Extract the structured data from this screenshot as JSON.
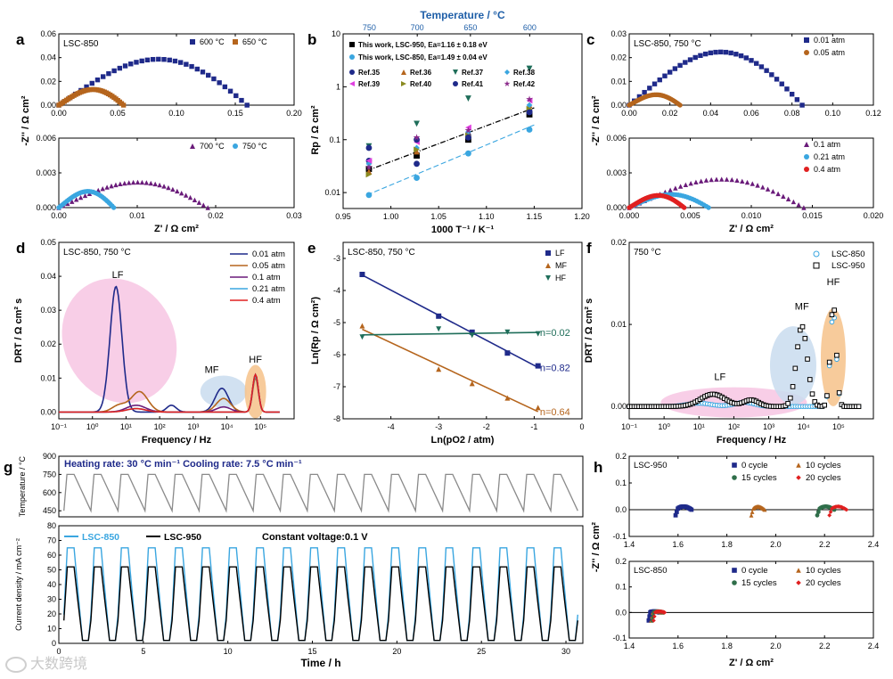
{
  "figure": {
    "watermark": "大数跨境",
    "colors": {
      "navy": "#1f2a8a",
      "brown": "#b5651d",
      "purple": "#6a1b7a",
      "cyan": "#3aa6e0",
      "red": "#e02020",
      "green": "#2f6e4a",
      "magenta": "#e040e0",
      "olive": "#8a8a20",
      "violet": "#8b2a8b",
      "teal": "#1f6e5a",
      "black": "#000000",
      "gray": "#8a8a8a",
      "pink_fill": "#f7c6e3",
      "blue_fill": "#c9dcee",
      "orange_fill": "#f6c28a"
    }
  },
  "chart_data": [
    {
      "id": "a",
      "letter": "a",
      "type": "scatter",
      "panels": [
        {
          "annotation": "LSC-850",
          "xlim": [
            0,
            0.2
          ],
          "ylim": [
            0,
            0.06
          ],
          "xticks": [
            "0.00",
            "0.05",
            "0.10",
            "0.15",
            "0.20"
          ],
          "yticks": [
            "0.00",
            "0.02",
            "0.04",
            "0.06"
          ],
          "series": [
            {
              "name": "600 °C",
              "marker": "square",
              "color": "navy",
              "shape": "arc",
              "x0": 0.0,
              "x1": 0.16,
              "peak": 0.044
            },
            {
              "name": "650 °C",
              "marker": "square",
              "color": "brown",
              "shape": "arc",
              "x0": 0.0,
              "x1": 0.055,
              "peak": 0.015
            }
          ]
        },
        {
          "annotation": "",
          "xlim": [
            0,
            0.03
          ],
          "ylim": [
            0,
            0.006
          ],
          "xticks": [
            "0.00",
            "0.01",
            "0.02",
            "0.03"
          ],
          "yticks": [
            "0.000",
            "0.003",
            "0.006"
          ],
          "xlabel": "Z' / Ω  cm²",
          "series": [
            {
              "name": "700 °C",
              "marker": "triangle",
              "color": "purple",
              "shape": "arc",
              "x0": 0.0,
              "x1": 0.019,
              "peak": 0.0025
            },
            {
              "name": "750 °C",
              "marker": "circle",
              "color": "cyan",
              "shape": "arc",
              "x0": 0.0,
              "x1": 0.007,
              "peak": 0.0016
            }
          ]
        }
      ],
      "ylabel": "-Z'' / Ω  cm²"
    },
    {
      "id": "b",
      "letter": "b",
      "type": "scatter",
      "top_axis_label": "Temperature / °C",
      "top_ticks": [
        "750",
        "700",
        "650",
        "600"
      ],
      "xlabel": "1000 T⁻¹ / K⁻¹",
      "ylabel": "Rp / Ω cm²",
      "xlim": [
        0.95,
        1.2
      ],
      "ylim_log": [
        0.005,
        10
      ],
      "xticks": [
        "0.95",
        "1.00",
        "1.05",
        "1.10",
        "1.15",
        "1.20"
      ],
      "yticks": [
        "0.01",
        "0.1",
        "1",
        "10"
      ],
      "legend_main": [
        "This work, LSC-950, Ea=1.16 ± 0.18 eV",
        "This work, LSC-850, Ea=1.49 ± 0.04 eV"
      ],
      "legend_refs": [
        "Ref.35",
        "Ref.36",
        "Ref.37",
        "Ref.38",
        "Ref.39",
        "Ref.40",
        "Ref.41",
        "Ref.42"
      ],
      "x_points": [
        0.977,
        1.027,
        1.081,
        1.145
      ],
      "series": [
        {
          "name": "LSC-950",
          "marker": "square",
          "color": "black",
          "values": [
            0.028,
            0.05,
            0.1,
            0.3
          ]
        },
        {
          "name": "LSC-850",
          "marker": "circle",
          "color": "cyan",
          "values": [
            0.009,
            0.019,
            0.055,
            0.155
          ]
        },
        {
          "name": "Ref.35",
          "marker": "circle",
          "color": "navy",
          "values": [
            0.04,
            0.035,
            0.12,
            0.35
          ]
        },
        {
          "name": "Ref.36",
          "marker": "triangle",
          "color": "brown",
          "values": [
            0.025,
            0.06,
            0.13,
            0.45
          ]
        },
        {
          "name": "Ref.37",
          "marker": "triangle-down",
          "color": "teal",
          "values": [
            0.075,
            0.2,
            0.6,
            2.2
          ]
        },
        {
          "name": "Ref.38",
          "marker": "diamond",
          "color": "cyan",
          "values": [
            0.035,
            0.07,
            0.14,
            0.45
          ]
        },
        {
          "name": "Ref.39",
          "marker": "triangle-left",
          "color": "magenta",
          "values": [
            0.04,
            0.09,
            0.17,
            0.55
          ]
        },
        {
          "name": "Ref.40",
          "marker": "triangle-right",
          "color": "olive",
          "values": [
            0.022,
            0.065,
            0.12,
            0.38
          ]
        },
        {
          "name": "Ref.41",
          "marker": "circle",
          "color": "navy",
          "values": [
            0.07,
            0.1,
            0.11,
            0.33
          ]
        },
        {
          "name": "Ref.42",
          "marker": "star",
          "color": "violet",
          "values": [
            0.03,
            0.11,
            0.15,
            0.58
          ]
        }
      ]
    },
    {
      "id": "c",
      "letter": "c",
      "type": "scatter",
      "ylabel": "-Z'' / Ω  cm²",
      "panels": [
        {
          "annotation": "LSC-850, 750 °C",
          "xlim": [
            0,
            0.12
          ],
          "ylim": [
            0,
            0.033
          ],
          "xticks": [
            "0.00",
            "0.02",
            "0.04",
            "0.06",
            "0.08",
            "0.10",
            "0.12"
          ],
          "yticks": [
            "0.00",
            "0.01",
            "0.02",
            "0.03"
          ],
          "series": [
            {
              "name": "0.01 atm",
              "marker": "square",
              "color": "navy",
              "shape": "arc",
              "x0": 0.0,
              "x1": 0.085,
              "peak": 0.028
            },
            {
              "name": "0.05 atm",
              "marker": "circle",
              "color": "brown",
              "shape": "arc",
              "x0": 0.0,
              "x1": 0.025,
              "peak": 0.0055
            }
          ]
        },
        {
          "annotation": "",
          "xlim": [
            0,
            0.02
          ],
          "ylim": [
            0,
            0.006
          ],
          "xticks": [
            "0.000",
            "0.005",
            "0.010",
            "0.015",
            "0.020"
          ],
          "yticks": [
            "0.000",
            "0.003",
            "0.006"
          ],
          "xlabel": "Z' / Ω  cm²",
          "series": [
            {
              "name": "0.1 atm",
              "marker": "triangle",
              "color": "purple",
              "shape": "arc",
              "x0": 0.0,
              "x1": 0.0143,
              "peak": 0.0028
            },
            {
              "name": "0.21 atm",
              "marker": "circle",
              "color": "cyan",
              "shape": "arc",
              "x0": 0.0,
              "x1": 0.0065,
              "peak": 0.0013
            },
            {
              "name": "0.4 atm",
              "marker": "circle",
              "color": "red",
              "shape": "arc",
              "x0": 0.0,
              "x1": 0.0045,
              "peak": 0.0012
            }
          ]
        }
      ]
    },
    {
      "id": "d",
      "letter": "d",
      "type": "line",
      "annotation": "LSC-850, 750 °C",
      "xlabel": "Frequency / Hz",
      "ylabel": "DRT / Ω cm² s",
      "xlim_log10": [
        -1,
        6
      ],
      "ylim": [
        -0.002,
        0.05
      ],
      "xticks": [
        "10⁻¹",
        "10⁰",
        "10¹",
        "10²",
        "10³",
        "10⁴",
        "10⁵"
      ],
      "yticks": [
        "0.00",
        "0.01",
        "0.02",
        "0.03",
        "0.04",
        "0.05"
      ],
      "region_labels": [
        "LF",
        "MF",
        "HF"
      ],
      "series": [
        {
          "name": "0.01 atm",
          "color": "navy",
          "peaks": [
            [
              0.7,
              0.037,
              0.25
            ],
            [
              2.35,
              0.002,
              0.2
            ],
            [
              3.85,
              0.007,
              0.28
            ],
            [
              4.85,
              0.011,
              0.12
            ]
          ]
        },
        {
          "name": "0.05 atm",
          "color": "brown",
          "peaks": [
            [
              0.8,
              0.002,
              0.3
            ],
            [
              1.4,
              0.006,
              0.35
            ],
            [
              3.9,
              0.004,
              0.3
            ],
            [
              4.85,
              0.01,
              0.12
            ]
          ]
        },
        {
          "name": "0.1 atm",
          "color": "purple",
          "peaks": [
            [
              1.3,
              0.002,
              0.4
            ],
            [
              3.9,
              0.0015,
              0.3
            ],
            [
              4.85,
              0.011,
              0.12
            ]
          ]
        },
        {
          "name": "0.21 atm",
          "color": "cyan",
          "peaks": [
            [
              1.3,
              0.001,
              0.4
            ],
            [
              4.85,
              0.0105,
              0.12
            ]
          ]
        },
        {
          "name": "0.4 atm",
          "color": "red",
          "peaks": [
            [
              1.3,
              0.001,
              0.4
            ],
            [
              4.85,
              0.011,
              0.12
            ]
          ]
        }
      ]
    },
    {
      "id": "e",
      "letter": "e",
      "type": "scatter",
      "annotation": "LSC-850, 750 °C",
      "xlabel": "Ln(pO2 / atm)",
      "ylabel": "Ln(Rp / Ω cm²)",
      "xlim": [
        -5,
        0
      ],
      "ylim": [
        -8,
        -2.5
      ],
      "xticks": [
        "-4",
        "-3",
        "-2",
        "-1",
        "0"
      ],
      "yticks": [
        "-8",
        "-7",
        "-6",
        "-5",
        "-4",
        "-3"
      ],
      "x": [
        -4.6,
        -3.0,
        -2.3,
        -1.56,
        -0.92
      ],
      "series": [
        {
          "name": "LF",
          "marker": "square",
          "color": "navy",
          "values": [
            -3.5,
            -4.8,
            -5.3,
            -5.95,
            -6.35
          ],
          "slope_label": "n=0.82"
        },
        {
          "name": "MF",
          "marker": "triangle",
          "color": "brown",
          "values": [
            -5.1,
            -6.45,
            -6.9,
            -7.35,
            -7.65
          ],
          "slope_label": "n=0.64"
        },
        {
          "name": "HF",
          "marker": "triangle-down",
          "color": "teal",
          "values": [
            -5.45,
            -5.2,
            -5.4,
            -5.3,
            -5.35
          ],
          "slope_label": "n=0.02"
        }
      ]
    },
    {
      "id": "f",
      "letter": "f",
      "type": "scatter",
      "annotation": "750 °C",
      "xlabel": "Frequency / Hz",
      "ylabel": "DRT / Ω cm² s",
      "xlim_log10": [
        -1,
        6
      ],
      "ylim": [
        -0.0015,
        0.02
      ],
      "xticks": [
        "10⁻¹",
        "10⁰",
        "10¹",
        "10²",
        "10³",
        "10⁴",
        "10⁵"
      ],
      "yticks": [
        "0.00",
        "0.01",
        "0.02"
      ],
      "region_labels": [
        "LF",
        "MF",
        "HF"
      ],
      "series": [
        {
          "name": "LSC-850",
          "marker": "circle-open",
          "color": "cyan",
          "peaks": [
            [
              1.0,
              0.0004,
              0.5
            ],
            [
              2.3,
              0.0005,
              0.4
            ],
            [
              4.85,
              0.0115,
              0.12
            ]
          ]
        },
        {
          "name": "LSC-950",
          "marker": "square-open",
          "color": "black",
          "peaks": [
            [
              1.4,
              0.0015,
              0.5
            ],
            [
              2.5,
              0.0008,
              0.3
            ],
            [
              3.95,
              0.0098,
              0.22
            ],
            [
              4.85,
              0.0125,
              0.12
            ]
          ]
        }
      ]
    },
    {
      "id": "g",
      "letter": "g",
      "type": "line",
      "top_annotation": "Heating rate: 30 °C min⁻¹  Cooling rate: 7.5 °C min⁻¹",
      "constant_voltage": "Constant voltage:0.1 V",
      "xlabel": "Time / h",
      "ylabel_top": "Temperature / °C",
      "ylabel_bottom": "Current density / mA cm⁻²",
      "xlim": [
        0,
        31
      ],
      "xticks": [
        "0",
        "5",
        "10",
        "15",
        "20",
        "25",
        "30"
      ],
      "temp_ylim": [
        400,
        900
      ],
      "temp_yticks": [
        "450",
        "600",
        "750",
        "900"
      ],
      "current_ylim": [
        0,
        80
      ],
      "current_yticks": [
        "0",
        "10",
        "20",
        "30",
        "40",
        "50",
        "60",
        "70",
        "80"
      ],
      "cycles": 19,
      "cycle_period_h": 1.6,
      "temperature": {
        "high": 750,
        "low": 450,
        "color": "gray"
      },
      "series": [
        {
          "name": "LSC-850",
          "color": "cyan",
          "high": 65,
          "low": 2
        },
        {
          "name": "LSC-950",
          "color": "black",
          "high": 52,
          "low": 2
        }
      ]
    },
    {
      "id": "h",
      "letter": "h",
      "type": "scatter",
      "ylabel": "-Z'' / Ω  cm²",
      "xlabel": "Z' / Ω  cm²",
      "panels": [
        {
          "annotation": "LSC-950",
          "xlim": [
            1.4,
            2.4
          ],
          "ylim": [
            -0.1,
            0.2
          ],
          "xticks": [
            "1.4",
            "1.6",
            "1.8",
            "2.0",
            "2.2",
            "2.4"
          ],
          "yticks": [
            "-0.1",
            "0.0",
            "0.1",
            "0.2"
          ],
          "series": [
            {
              "name": "0 cycle",
              "marker": "square",
              "color": "navy",
              "x0": 1.59,
              "x1": 1.655,
              "peak": 0.012
            },
            {
              "name": "10 cycles",
              "marker": "triangle",
              "color": "brown",
              "x0": 1.9,
              "x1": 1.955,
              "peak": 0.012
            },
            {
              "name": "15 cycles",
              "marker": "circle",
              "color": "green",
              "x0": 2.17,
              "x1": 2.24,
              "peak": 0.012
            },
            {
              "name": "20 cycles",
              "marker": "diamond",
              "color": "red",
              "x0": 2.22,
              "x1": 2.29,
              "peak": 0.012
            }
          ]
        },
        {
          "annotation": "LSC-850",
          "xlim": [
            1.4,
            2.4
          ],
          "ylim": [
            -0.1,
            0.2
          ],
          "xticks": [
            "1.4",
            "1.6",
            "1.8",
            "2.0",
            "2.2",
            "2.4"
          ],
          "yticks": [
            "-0.1",
            "0.0",
            "0.1",
            "0.2"
          ],
          "series": [
            {
              "name": "0 cycle",
              "marker": "square",
              "color": "navy",
              "x0": 1.48,
              "x1": 1.525,
              "peak": 0.004
            },
            {
              "name": "10 cycles",
              "marker": "triangle",
              "color": "brown",
              "x0": 1.49,
              "x1": 1.535,
              "peak": 0.004
            },
            {
              "name": "15 cycles",
              "marker": "circle",
              "color": "green",
              "x0": 1.495,
              "x1": 1.54,
              "peak": 0.004
            },
            {
              "name": "20 cycles",
              "marker": "diamond",
              "color": "red",
              "x0": 1.5,
              "x1": 1.545,
              "peak": 0.004
            }
          ]
        }
      ]
    }
  ]
}
